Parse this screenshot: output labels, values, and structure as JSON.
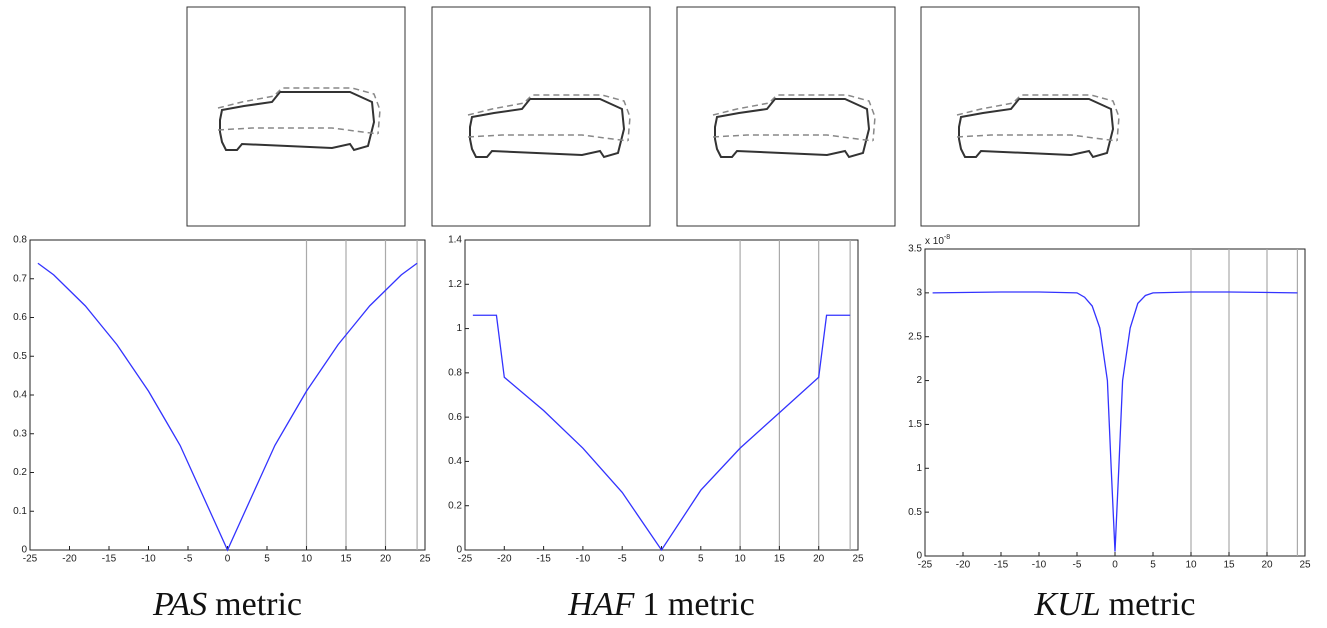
{
  "chart_data": [
    {
      "type": "line",
      "label": {
        "var": "PAS",
        "rest": "metric"
      },
      "xlim": [
        -25,
        25
      ],
      "xticks": [
        -25,
        -20,
        -15,
        -10,
        -5,
        0,
        5,
        10,
        15,
        20,
        25
      ],
      "ylim": [
        0,
        0.8
      ],
      "yticks": [
        0,
        0.1,
        0.2,
        0.3,
        0.4,
        0.5,
        0.6,
        0.7,
        0.8
      ],
      "vlines": [
        10,
        15,
        20,
        24
      ],
      "color": "#3333ff",
      "x": [
        -24,
        -22,
        -20,
        -18,
        -16,
        -14,
        -12,
        -10,
        -8,
        -6,
        -4,
        -2,
        0,
        2,
        4,
        6,
        8,
        10,
        12,
        14,
        16,
        18,
        20,
        22,
        24
      ],
      "values": [
        0.74,
        0.71,
        0.67,
        0.63,
        0.58,
        0.53,
        0.47,
        0.41,
        0.34,
        0.27,
        0.18,
        0.09,
        0,
        0.09,
        0.18,
        0.27,
        0.34,
        0.41,
        0.47,
        0.53,
        0.58,
        0.63,
        0.67,
        0.71,
        0.74
      ]
    },
    {
      "type": "line",
      "label": {
        "var": "HAF",
        "rest": "1 metric"
      },
      "xlim": [
        -25,
        25
      ],
      "xticks": [
        -25,
        -20,
        -15,
        -10,
        -5,
        0,
        5,
        10,
        15,
        20,
        25
      ],
      "ylim": [
        0,
        1.4
      ],
      "yticks": [
        0,
        0.2,
        0.4,
        0.6,
        0.8,
        1,
        1.2,
        1.4
      ],
      "vlines": [
        10,
        15,
        20,
        24
      ],
      "color": "#3333ff",
      "x": [
        -24,
        -21,
        -20,
        -15,
        -10,
        -5,
        0,
        5,
        10,
        15,
        20,
        21,
        24
      ],
      "values": [
        1.06,
        1.06,
        0.78,
        0.63,
        0.46,
        0.26,
        0,
        0.27,
        0.46,
        0.62,
        0.78,
        1.06,
        1.06
      ]
    },
    {
      "type": "line",
      "label": {
        "var": "KUL",
        "rest": "metric"
      },
      "y_multiplier": {
        "base": "x 10",
        "exp": "-8"
      },
      "xlim": [
        -25,
        25
      ],
      "xticks": [
        -25,
        -20,
        -15,
        -10,
        -5,
        0,
        5,
        10,
        15,
        20,
        25
      ],
      "ylim": [
        0,
        3.5
      ],
      "yticks": [
        0,
        0.5,
        1,
        1.5,
        2,
        2.5,
        3,
        3.5
      ],
      "vlines": [
        10,
        15,
        20,
        24
      ],
      "color": "#3333ff",
      "x": [
        -24,
        -15,
        -10,
        -5,
        -4,
        -3,
        -2,
        -1,
        -0.5,
        0,
        0.5,
        1,
        2,
        3,
        4,
        5,
        10,
        15,
        24
      ],
      "values": [
        3.0,
        3.01,
        3.01,
        3.0,
        2.95,
        2.85,
        2.6,
        2.0,
        1.0,
        0.05,
        1.0,
        2.0,
        2.6,
        2.88,
        2.97,
        3.0,
        3.01,
        3.01,
        3.0
      ]
    }
  ]
}
